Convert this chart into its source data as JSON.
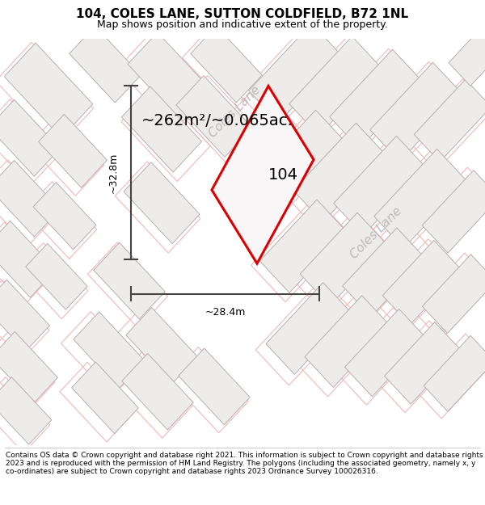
{
  "title": "104, COLES LANE, SUTTON COLDFIELD, B72 1NL",
  "subtitle": "Map shows position and indicative extent of the property.",
  "footer": "Contains OS data © Crown copyright and database right 2021. This information is subject to Crown copyright and database rights 2023 and is reproduced with the permission of HM Land Registry. The polygons (including the associated geometry, namely x, y co-ordinates) are subject to Crown copyright and database rights 2023 Ordnance Survey 100026316.",
  "area_label": "~262m²/~0.065ac.",
  "width_label": "~28.4m",
  "height_label": "~32.8m",
  "plot_number": "104",
  "map_bg": "#ffffff",
  "building_fill": "#eeebeb",
  "building_edge": "#b8b0b0",
  "pink_line": "#f5b8b8",
  "pink_line2": "#e8a0a0",
  "red_outline": "#dd0000",
  "street_color": "#bbbbbb",
  "dim_color": "#444444",
  "title_fontsize": 11,
  "subtitle_fontsize": 9,
  "footer_fontsize": 6.5,
  "area_fontsize": 14,
  "dim_fontsize": 9,
  "plot_label_fontsize": 14,
  "street_fontsize": 11
}
